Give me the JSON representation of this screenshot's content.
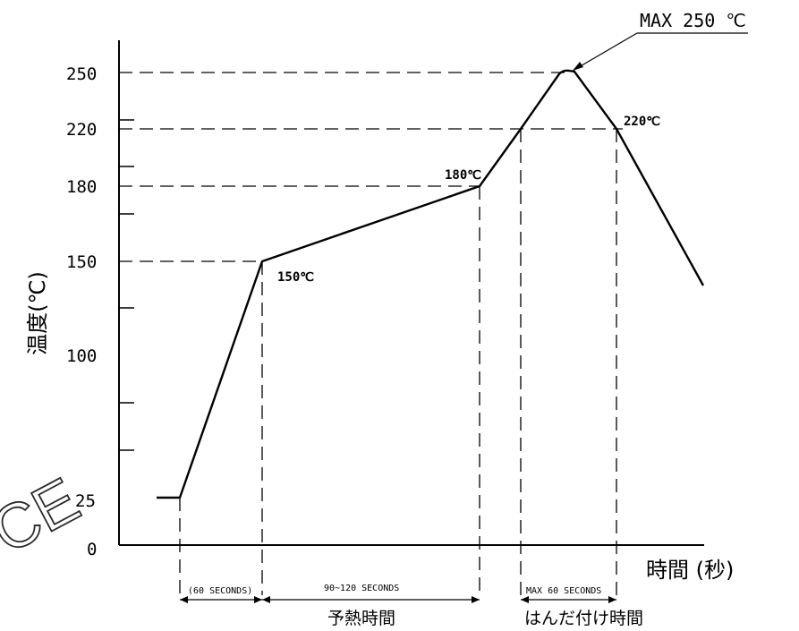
{
  "chart_data": {
    "type": "line",
    "y_axis_label": "温度(℃)",
    "x_axis_label": "時間 (秒)",
    "y_ticks": [
      "0",
      "25",
      "100",
      "150",
      "180",
      "220",
      "250"
    ],
    "profile_temperatures": [
      25,
      25,
      150,
      180,
      220,
      250,
      250,
      220
    ],
    "point_labels": [
      "150℃",
      "180℃",
      "220℃"
    ],
    "peak_label": "MAX 250 ℃",
    "intervals": [
      {
        "label": "(60 SECONDS)"
      },
      {
        "label": "90~120 SECONDS",
        "caption": "予熱時間"
      },
      {
        "label": "MAX 60 SECONDS",
        "caption": "はんだ付け時間"
      }
    ]
  },
  "watermark_text": "CE"
}
